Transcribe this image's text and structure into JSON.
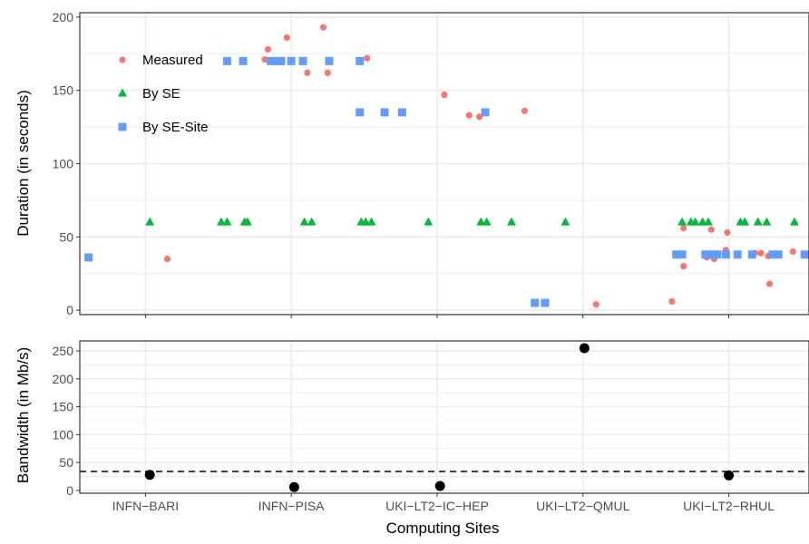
{
  "chart_data": [
    {
      "type": "scatter",
      "ylabel": "Duration (in seconds)",
      "ylim": [
        -3,
        203
      ],
      "yticks": [
        0,
        50,
        100,
        150,
        200
      ],
      "categories": [
        "INFN−BARI",
        "INFN−PISA",
        "UKI−LT2−IC−HEP",
        "UKI−LT2−QMUL",
        "UKI−LT2−RHUL"
      ],
      "xlim": [
        0.55,
        5.55
      ],
      "grid": true,
      "legend_position": "top-left",
      "series": [
        {
          "name": "Measured",
          "color": "#f8766d",
          "marker": "circle",
          "points": [
            [
              1.15,
              35
            ],
            [
              1.82,
              171
            ],
            [
              1.84,
              178
            ],
            [
              1.97,
              186
            ],
            [
              2.11,
              162
            ],
            [
              2.22,
              193
            ],
            [
              2.25,
              162
            ],
            [
              2.52,
              172
            ],
            [
              3.05,
              147
            ],
            [
              3.22,
              133
            ],
            [
              3.29,
              132
            ],
            [
              3.6,
              136
            ],
            [
              4.09,
              4
            ],
            [
              4.61,
              6
            ],
            [
              4.69,
              56
            ],
            [
              4.69,
              30
            ],
            [
              4.85,
              36
            ],
            [
              4.88,
              55
            ],
            [
              4.9,
              35
            ],
            [
              4.98,
              41
            ],
            [
              4.99,
              53
            ],
            [
              5.18,
              39
            ],
            [
              5.22,
              39
            ],
            [
              5.27,
              37
            ],
            [
              5.28,
              18
            ],
            [
              5.44,
              40
            ]
          ]
        },
        {
          "name": "By SE",
          "color": "#00ba38",
          "marker": "triangle",
          "points": [
            [
              1.03,
              60
            ],
            [
              1.52,
              60
            ],
            [
              1.56,
              60
            ],
            [
              1.68,
              60
            ],
            [
              1.7,
              60
            ],
            [
              2.09,
              60
            ],
            [
              2.14,
              60
            ],
            [
              2.48,
              60
            ],
            [
              2.51,
              60
            ],
            [
              2.55,
              60
            ],
            [
              2.94,
              60
            ],
            [
              3.3,
              60
            ],
            [
              3.34,
              60
            ],
            [
              3.51,
              60
            ],
            [
              3.88,
              60
            ],
            [
              4.68,
              60
            ],
            [
              4.74,
              60
            ],
            [
              4.77,
              60
            ],
            [
              4.82,
              60
            ],
            [
              4.86,
              60
            ],
            [
              5.08,
              60
            ],
            [
              5.11,
              60
            ],
            [
              5.2,
              60
            ],
            [
              5.26,
              60
            ],
            [
              5.45,
              60
            ],
            [
              5.58,
              60
            ]
          ]
        },
        {
          "name": "By SE-Site",
          "color": "#619cff",
          "marker": "square",
          "points": [
            [
              0.61,
              36
            ],
            [
              1.56,
              170
            ],
            [
              1.67,
              170
            ],
            [
              1.86,
              170
            ],
            [
              1.9,
              170
            ],
            [
              1.93,
              170
            ],
            [
              2.0,
              170
            ],
            [
              2.08,
              170
            ],
            [
              2.26,
              170
            ],
            [
              2.47,
              170
            ],
            [
              2.47,
              135
            ],
            [
              2.64,
              135
            ],
            [
              2.76,
              135
            ],
            [
              3.33,
              135
            ],
            [
              3.67,
              5
            ],
            [
              3.74,
              5
            ],
            [
              4.64,
              38
            ],
            [
              4.68,
              38
            ],
            [
              4.84,
              38
            ],
            [
              4.88,
              38
            ],
            [
              4.92,
              38
            ],
            [
              4.98,
              38
            ],
            [
              5.06,
              38
            ],
            [
              5.16,
              38
            ],
            [
              5.3,
              38
            ],
            [
              5.34,
              38
            ],
            [
              5.52,
              38
            ],
            [
              5.56,
              38
            ]
          ]
        }
      ]
    },
    {
      "type": "scatter",
      "ylabel": "Bandwidth (in Mb/s)",
      "xlabel": "Computing Sites",
      "ylim": [
        -5,
        268
      ],
      "yticks": [
        0,
        50,
        100,
        150,
        200,
        250
      ],
      "categories": [
        "INFN−BARI",
        "INFN−PISA",
        "UKI−LT2−IC−HEP",
        "UKI−LT2−QMUL",
        "UKI−LT2−RHUL"
      ],
      "grid": true,
      "series": [
        {
          "color": "#000000",
          "marker": "circle",
          "points": [
            [
              1.03,
              28
            ],
            [
              2.02,
              6
            ],
            [
              3.02,
              8
            ],
            [
              4.01,
              255
            ],
            [
              5.0,
              27
            ]
          ]
        }
      ],
      "reference_line": {
        "y": 34,
        "style": "dashed"
      }
    }
  ]
}
